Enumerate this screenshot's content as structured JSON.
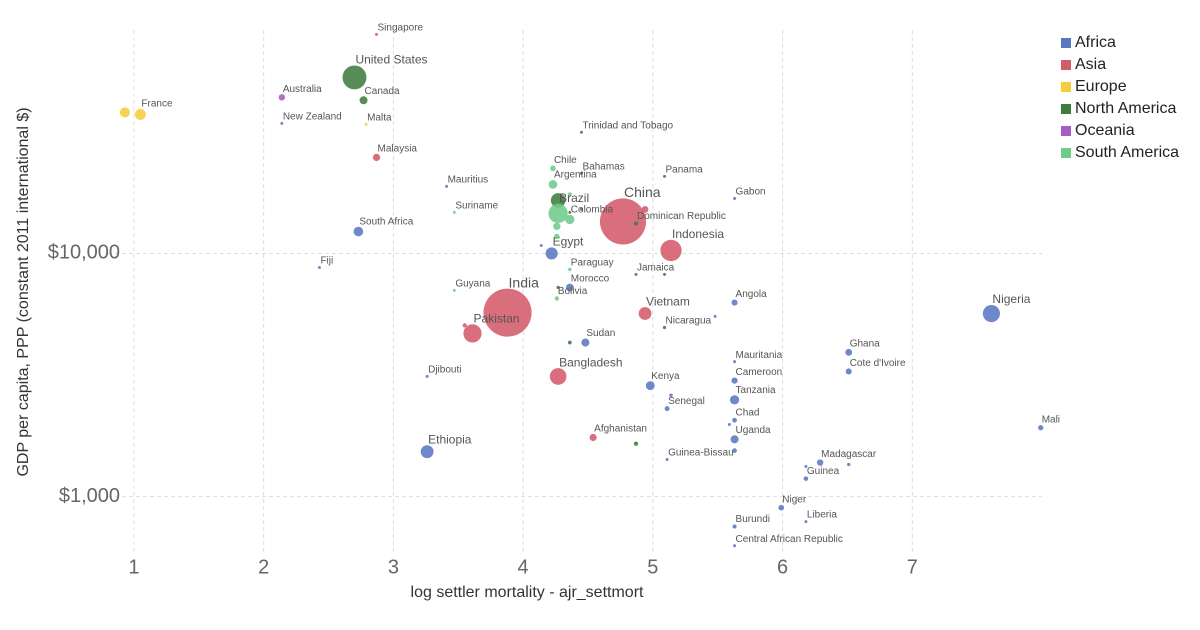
{
  "chart_data": {
    "type": "scatter",
    "x_label": "log settler mortality - ajr_settmort",
    "y_label": "GDP per capita, PPP (constant 2011 international $)",
    "xlim": [
      0.8,
      8.0
    ],
    "xticks": [
      1,
      2,
      3,
      4,
      5,
      6,
      7
    ],
    "ylim": [
      575,
      83000
    ],
    "y_log": true,
    "yticks": [
      {
        "value": 1000,
        "label": "$1,000"
      },
      {
        "value": 10000,
        "label": "$10,000"
      }
    ],
    "grid": true,
    "legend": "upper right",
    "series": [
      {
        "name": "Africa",
        "color": "#5a78c2",
        "x": [
          2.73,
          4.22,
          4.14,
          3.41,
          5.63,
          4.36,
          5.63,
          5.48,
          7.61,
          4.48,
          6.51,
          6.51,
          5.63,
          5.63,
          4.98,
          5.63,
          5.11,
          5.63,
          5.59,
          5.63,
          5.63,
          7.99,
          6.29,
          6.51,
          6.18,
          6.18,
          5.11,
          3.26,
          3.26,
          5.99,
          5.63,
          6.18,
          5.63
        ],
        "values": [
          12310,
          10000,
          10780,
          18880,
          16830,
          7245,
          6280,
          5510,
          5660,
          4300,
          3920,
          3270,
          3590,
          3000,
          2860,
          2500,
          2300,
          2060,
          1980,
          1720,
          1545,
          1920,
          1380,
          1355,
          1330,
          1185,
          1420,
          1530,
          3120,
          900,
          753,
          789,
          628
        ],
        "sizes": [
          50,
          80,
          5,
          1.3,
          1.5,
          32,
          20,
          3,
          160,
          35,
          25,
          20,
          4,
          21,
          42,
          46,
          13,
          12,
          4,
          35,
          12,
          15,
          22,
          6,
          5,
          11,
          1.6,
          90,
          1,
          17,
          9,
          4,
          4.5
        ],
        "labels": [
          "South Africa",
          "Egypt",
          null,
          "Mauritius",
          "Gabon",
          "Morocco",
          "Angola",
          null,
          "Nigeria",
          "Sudan",
          "Ghana",
          "Cote d'Ivoire",
          "Mauritania",
          "Cameroon",
          "Kenya",
          "Tanzania",
          "Senegal",
          "Chad",
          null,
          "Uganda",
          null,
          "Mali",
          "Madagascar",
          null,
          null,
          "Guinea",
          "Guinea-Bissau",
          "Ethiopia",
          "Djibouti",
          "Niger",
          "Burundi",
          "Liberia",
          "Central African Republic"
        ]
      },
      {
        "name": "Asia",
        "color": "#d45b6a",
        "x": [
          2.87,
          2.87,
          4.77,
          4.94,
          5.14,
          3.88,
          3.61,
          3.55,
          4.94,
          4.27,
          4.54
        ],
        "values": [
          79600,
          24830,
          13540,
          15170,
          10290,
          5710,
          4690,
          5060,
          5660,
          3120,
          1750
        ],
        "sizes": [
          5,
          29,
          1150,
          25,
          245,
          1250,
          180,
          10,
          88,
          150,
          28
        ],
        "labels": [
          "Singapore",
          "Malaysia",
          "China",
          null,
          "Indonesia",
          "India",
          "Pakistan",
          null,
          "Vietnam",
          "Bangladesh",
          "Afghanistan"
        ]
      },
      {
        "name": "Europe",
        "color": "#f5cd3c",
        "x": [
          1.05,
          0.93,
          2.79
        ],
        "values": [
          37330,
          38020,
          33960
        ],
        "sizes": [
          65,
          55,
          0.4
        ],
        "labels": [
          "France",
          null,
          "Malta"
        ]
      },
      {
        "name": "North America",
        "color": "#3f7d3f",
        "x": [
          2.7,
          2.77,
          4.45,
          4.45,
          5.09,
          4.87,
          4.27,
          4.87,
          5.09,
          4.27,
          4.36,
          5.09,
          4.87,
          4.36,
          4.45
        ],
        "values": [
          52970,
          42660,
          31510,
          21350,
          20750,
          13280,
          16530,
          8200,
          8200,
          7245,
          4300,
          4960,
          1650,
          14750,
          15200
        ],
        "sizes": [
          310,
          34,
          1.3,
          0.4,
          3.6,
          10,
          115,
          2.7,
          2,
          6,
          8,
          6,
          10,
          4,
          3
        ],
        "labels": [
          "United States",
          "Canada",
          "Trinidad and Tobago",
          "Bahamas",
          "Panama",
          "Dominican Republic",
          null,
          "Jamaica",
          null,
          null,
          null,
          "Nicaragua",
          null,
          null,
          null
        ]
      },
      {
        "name": "Oceania",
        "color": "#a65bc6",
        "x": [
          2.14,
          2.14,
          2.43,
          5.14
        ],
        "values": [
          43850,
          34280,
          8750,
          2610
        ],
        "sizes": [
          22,
          4.4,
          0.9,
          7
        ],
        "labels": [
          "Australia",
          "New Zealand",
          "Fiji",
          null
        ]
      },
      {
        "name": "South America",
        "color": "#6fcb8c",
        "x": [
          4.23,
          4.23,
          4.36,
          4.27,
          4.36,
          3.47,
          4.26,
          4.26,
          4.36,
          4.26,
          3.47
        ],
        "values": [
          22390,
          19230,
          17500,
          14610,
          13800,
          14750,
          12920,
          11750,
          8590,
          6530,
          7050
        ],
        "sizes": [
          17,
          41,
          10,
          200,
          46,
          0.5,
          29,
          16,
          6.5,
          10,
          0.8
        ],
        "labels": [
          "Chile",
          "Argentina",
          null,
          "Brazil",
          "Colombia",
          "Suriname",
          null,
          null,
          "Paraguay",
          "Bolivia",
          "Guyana"
        ]
      }
    ]
  }
}
